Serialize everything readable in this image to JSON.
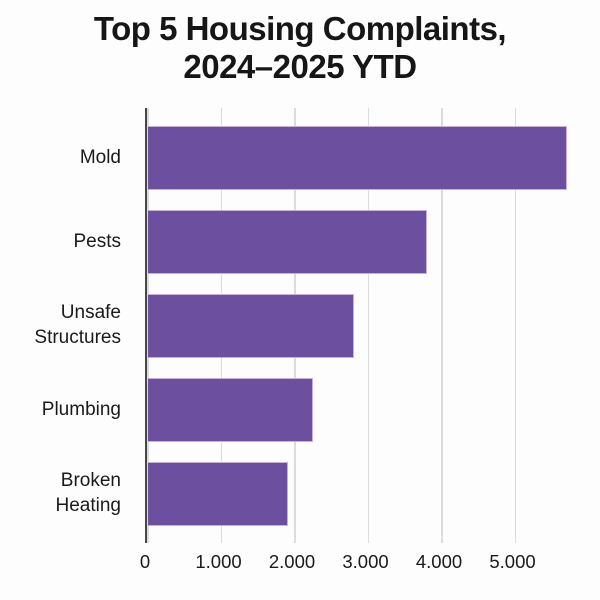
{
  "header": {
    "title_line1": "Top 5 Housing Complaints,",
    "title_line2": "2024–2025 YTD"
  },
  "chart_data": {
    "type": "bar",
    "orientation": "horizontal",
    "title": "Top 5 Housing Complaints, 2024–2025 YTD",
    "categories": [
      "Mold",
      "Pests",
      "Unsafe Structures",
      "Plumbing",
      "Broken Heating"
    ],
    "values": [
      5700,
      3800,
      2800,
      2250,
      1900
    ],
    "xlabel": "",
    "ylabel": "",
    "xlim": [
      0,
      5850
    ],
    "xticks": {
      "values": [
        0,
        1000,
        2000,
        3000,
        4000,
        5000
      ],
      "labels": [
        "0",
        "1.000",
        "2.000",
        "3.000",
        "4.000",
        "5.000"
      ]
    },
    "grid": true,
    "legend": false,
    "colors": {
      "bar_fill": "#6d4fa0",
      "bar_border": "#c9b0d8",
      "gridline": "#dcdcdc",
      "axis_line": "#474747",
      "text": "#111111",
      "background": "#fdfdfd"
    }
  }
}
